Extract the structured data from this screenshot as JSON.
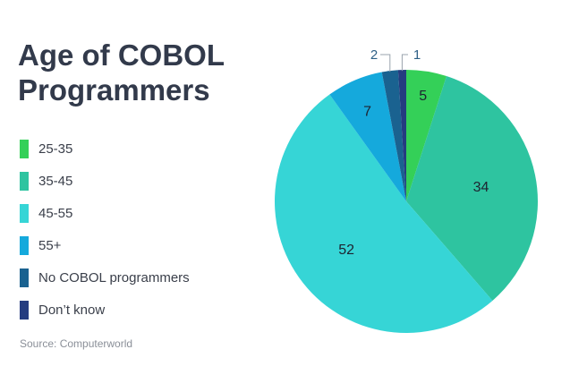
{
  "chart_data": {
    "type": "pie",
    "title": "Age of COBOL Programmers",
    "title_lines": [
      "Age of COBOL",
      "Programmers"
    ],
    "categories": [
      "25-35",
      "35-45",
      "45-55",
      "55+",
      "No COBOL programmers",
      "Don’t know"
    ],
    "values": [
      5,
      34,
      52,
      7,
      2,
      1
    ],
    "colors": [
      "#34d058",
      "#2ec4a0",
      "#36d5d6",
      "#15a9dc",
      "#1a6290",
      "#243c80"
    ],
    "legend_position": "left",
    "source": "Source: Computerworld"
  }
}
